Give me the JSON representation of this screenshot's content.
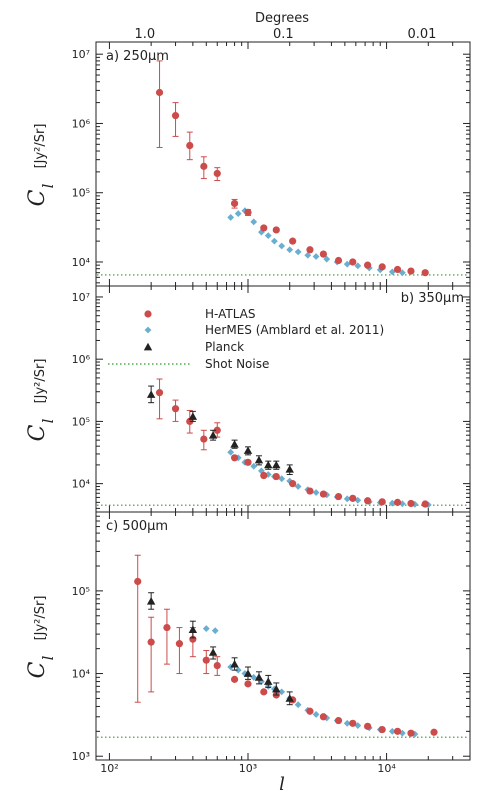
{
  "colors": {
    "hatlas": "#cc4b4b",
    "hermes": "#6aaed0",
    "planck": "#222222",
    "shot_noise": "#2e9a2e"
  },
  "figure": {
    "top_axis_label": "Degrees",
    "top_ticks": [
      {
        "label": "1.0",
        "l": 180
      },
      {
        "label": "0.1",
        "l": 1800
      },
      {
        "label": "0.01",
        "l": 18000
      }
    ],
    "x_label": "l",
    "x_ticks": [
      "10²",
      "10³",
      "10⁴"
    ],
    "y_label_main": "C",
    "y_label_sub": "l",
    "y_unit": "[Jy²/Sr]"
  },
  "legend": {
    "items": [
      {
        "label": "H-ATLAS",
        "marker": "circle"
      },
      {
        "label": "HerMES (Amblard et al. 2011)",
        "marker": "diamond"
      },
      {
        "label": "Planck",
        "marker": "triangle"
      },
      {
        "label": "Shot Noise",
        "marker": "dotted-line"
      }
    ]
  },
  "chart_data": [
    {
      "type": "scatter",
      "title": "a) 250μm",
      "xscale": "log",
      "yscale": "log",
      "xlim": [
        80,
        40000
      ],
      "ylim": [
        4500,
        15000000
      ],
      "y_ticks": [
        "10⁴",
        "10⁵",
        "10⁶",
        "10⁷"
      ],
      "shot_noise": 6500,
      "series": [
        {
          "name": "H-ATLAS",
          "marker": "circle",
          "points": [
            {
              "x": 230,
              "y": 2800000,
              "lo": 450000,
              "hi": 8000000
            },
            {
              "x": 300,
              "y": 1300000,
              "lo": 650000,
              "hi": 2000000
            },
            {
              "x": 380,
              "y": 480000,
              "lo": 300000,
              "hi": 750000
            },
            {
              "x": 480,
              "y": 240000,
              "lo": 160000,
              "hi": 330000
            },
            {
              "x": 600,
              "y": 190000,
              "lo": 150000,
              "hi": 230000
            },
            {
              "x": 800,
              "y": 70000,
              "lo": 60000,
              "hi": 80000
            },
            {
              "x": 1000,
              "y": 52000,
              "lo": 47000,
              "hi": 57000
            },
            {
              "x": 1300,
              "y": 31000
            },
            {
              "x": 1600,
              "y": 29000
            },
            {
              "x": 2100,
              "y": 20000
            },
            {
              "x": 2800,
              "y": 15000
            },
            {
              "x": 3500,
              "y": 13000
            },
            {
              "x": 4500,
              "y": 10500
            },
            {
              "x": 5700,
              "y": 10000
            },
            {
              "x": 7300,
              "y": 9000
            },
            {
              "x": 9300,
              "y": 8500
            },
            {
              "x": 12000,
              "y": 7800
            },
            {
              "x": 15000,
              "y": 7400
            },
            {
              "x": 19000,
              "y": 7000
            }
          ]
        },
        {
          "name": "HerMES (Amblard et al. 2011)",
          "marker": "diamond",
          "points": [
            {
              "x": 750,
              "y": 44000
            },
            {
              "x": 850,
              "y": 50000
            },
            {
              "x": 950,
              "y": 55000
            },
            {
              "x": 1100,
              "y": 38000
            },
            {
              "x": 1250,
              "y": 27000
            },
            {
              "x": 1400,
              "y": 24000
            },
            {
              "x": 1550,
              "y": 20000
            },
            {
              "x": 1750,
              "y": 17000
            },
            {
              "x": 2000,
              "y": 15000
            },
            {
              "x": 2300,
              "y": 14000
            },
            {
              "x": 2700,
              "y": 12500
            },
            {
              "x": 3100,
              "y": 12000
            },
            {
              "x": 3700,
              "y": 11000
            },
            {
              "x": 4400,
              "y": 10000
            },
            {
              "x": 5200,
              "y": 9300
            },
            {
              "x": 6200,
              "y": 8800
            },
            {
              "x": 7500,
              "y": 8200
            },
            {
              "x": 9000,
              "y": 7700
            },
            {
              "x": 11000,
              "y": 7200
            },
            {
              "x": 13000,
              "y": 7000
            }
          ]
        }
      ]
    },
    {
      "type": "scatter",
      "title": "b) 350μm",
      "xscale": "log",
      "yscale": "log",
      "xlim": [
        80,
        40000
      ],
      "ylim": [
        3500,
        15000000
      ],
      "y_ticks": [
        "10⁴",
        "10⁵",
        "10⁶",
        "10⁷"
      ],
      "shot_noise": 4500,
      "series": [
        {
          "name": "H-ATLAS",
          "marker": "circle",
          "points": [
            {
              "x": 230,
              "y": 290000,
              "lo": 110000,
              "hi": 480000
            },
            {
              "x": 300,
              "y": 160000,
              "lo": 100000,
              "hi": 220000
            },
            {
              "x": 380,
              "y": 100000,
              "lo": 65000,
              "hi": 150000
            },
            {
              "x": 480,
              "y": 52000,
              "lo": 35000,
              "hi": 72000
            },
            {
              "x": 600,
              "y": 72000,
              "lo": 56000,
              "hi": 95000
            },
            {
              "x": 800,
              "y": 26000
            },
            {
              "x": 1000,
              "y": 22000
            },
            {
              "x": 1300,
              "y": 13500
            },
            {
              "x": 1600,
              "y": 13000
            },
            {
              "x": 2100,
              "y": 10000
            },
            {
              "x": 2800,
              "y": 7600
            },
            {
              "x": 3500,
              "y": 6800
            },
            {
              "x": 4500,
              "y": 6200
            },
            {
              "x": 5700,
              "y": 5800
            },
            {
              "x": 7300,
              "y": 5300
            },
            {
              "x": 9300,
              "y": 5100
            },
            {
              "x": 12000,
              "y": 5000
            },
            {
              "x": 15000,
              "y": 4800
            },
            {
              "x": 19000,
              "y": 4700
            }
          ]
        },
        {
          "name": "HerMES (Amblard et al. 2011)",
          "marker": "diamond",
          "points": [
            {
              "x": 750,
              "y": 32000
            },
            {
              "x": 850,
              "y": 26000
            },
            {
              "x": 950,
              "y": 22000
            },
            {
              "x": 1100,
              "y": 19000
            },
            {
              "x": 1250,
              "y": 16000
            },
            {
              "x": 1400,
              "y": 14000
            },
            {
              "x": 1550,
              "y": 13000
            },
            {
              "x": 1750,
              "y": 12000
            },
            {
              "x": 2000,
              "y": 11000
            },
            {
              "x": 2300,
              "y": 9000
            },
            {
              "x": 2700,
              "y": 8000
            },
            {
              "x": 3100,
              "y": 7200
            },
            {
              "x": 3700,
              "y": 6600
            },
            {
              "x": 4400,
              "y": 6100
            },
            {
              "x": 5200,
              "y": 5700
            },
            {
              "x": 6200,
              "y": 5400
            },
            {
              "x": 7500,
              "y": 5100
            },
            {
              "x": 9000,
              "y": 4950
            },
            {
              "x": 11000,
              "y": 4850
            },
            {
              "x": 13000,
              "y": 4750
            },
            {
              "x": 16000,
              "y": 4650
            },
            {
              "x": 20000,
              "y": 4550
            }
          ]
        },
        {
          "name": "Planck",
          "marker": "triangle",
          "points": [
            {
              "x": 200,
              "y": 270000,
              "lo": 200000,
              "hi": 370000
            },
            {
              "x": 400,
              "y": 120000,
              "lo": 100000,
              "hi": 145000
            },
            {
              "x": 560,
              "y": 60000,
              "lo": 50000,
              "hi": 72000
            },
            {
              "x": 800,
              "y": 43000,
              "lo": 37000,
              "hi": 50000
            },
            {
              "x": 1000,
              "y": 34000,
              "lo": 29000,
              "hi": 39000
            },
            {
              "x": 1200,
              "y": 24000,
              "lo": 20000,
              "hi": 28000
            },
            {
              "x": 1400,
              "y": 20000,
              "lo": 17000,
              "hi": 23000
            },
            {
              "x": 1600,
              "y": 20000,
              "lo": 17000,
              "hi": 23000
            },
            {
              "x": 2000,
              "y": 17000,
              "lo": 14000,
              "hi": 20000
            }
          ]
        }
      ]
    },
    {
      "type": "scatter",
      "title": "c) 500μm",
      "xscale": "log",
      "yscale": "log",
      "xlim": [
        80,
        40000
      ],
      "ylim": [
        900,
        900000
      ],
      "y_ticks": [
        "10³",
        "10⁴",
        "10⁵"
      ],
      "shot_noise": 1700,
      "series": [
        {
          "name": "H-ATLAS",
          "marker": "circle",
          "points": [
            {
              "x": 160,
              "y": 130000,
              "lo": 4500,
              "hi": 270000
            },
            {
              "x": 200,
              "y": 24000,
              "lo": 6000,
              "hi": 48000
            },
            {
              "x": 260,
              "y": 36000,
              "lo": 13000,
              "hi": 60000
            },
            {
              "x": 320,
              "y": 23000,
              "lo": 10000,
              "hi": 36000
            },
            {
              "x": 400,
              "y": 26000,
              "lo": 16000,
              "hi": 36000
            },
            {
              "x": 500,
              "y": 14500,
              "lo": 10000,
              "hi": 19000
            },
            {
              "x": 600,
              "y": 12500,
              "lo": 9500,
              "hi": 16000
            },
            {
              "x": 800,
              "y": 8500
            },
            {
              "x": 1000,
              "y": 7500
            },
            {
              "x": 1300,
              "y": 6000
            },
            {
              "x": 1600,
              "y": 5500
            },
            {
              "x": 2100,
              "y": 4800
            },
            {
              "x": 2800,
              "y": 3500
            },
            {
              "x": 3500,
              "y": 3000
            },
            {
              "x": 4500,
              "y": 2700
            },
            {
              "x": 5700,
              "y": 2500
            },
            {
              "x": 7300,
              "y": 2300
            },
            {
              "x": 9300,
              "y": 2100
            },
            {
              "x": 12000,
              "y": 2000
            },
            {
              "x": 15000,
              "y": 1900
            },
            {
              "x": 22000,
              "y": 1950
            }
          ]
        },
        {
          "name": "HerMES (Amblard et al. 2011)",
          "marker": "diamond",
          "points": [
            {
              "x": 750,
              "y": 12000
            },
            {
              "x": 850,
              "y": 11000
            },
            {
              "x": 950,
              "y": 10000
            },
            {
              "x": 1100,
              "y": 9000
            },
            {
              "x": 1250,
              "y": 8000
            },
            {
              "x": 1400,
              "y": 7000
            },
            {
              "x": 1550,
              "y": 6500
            },
            {
              "x": 1750,
              "y": 6000
            },
            {
              "x": 2000,
              "y": 5000
            },
            {
              "x": 2300,
              "y": 4200
            },
            {
              "x": 2700,
              "y": 3600
            },
            {
              "x": 3100,
              "y": 3200
            },
            {
              "x": 3700,
              "y": 2900
            },
            {
              "x": 4400,
              "y": 2700
            },
            {
              "x": 5200,
              "y": 2500
            },
            {
              "x": 6200,
              "y": 2350
            },
            {
              "x": 7500,
              "y": 2200
            },
            {
              "x": 9000,
              "y": 2100
            },
            {
              "x": 11000,
              "y": 2000
            },
            {
              "x": 13000,
              "y": 1900
            },
            {
              "x": 16000,
              "y": 1850
            },
            {
              "x": 500,
              "y": 35000
            },
            {
              "x": 580,
              "y": 33000
            }
          ]
        },
        {
          "name": "Planck",
          "marker": "triangle",
          "points": [
            {
              "x": 200,
              "y": 75000,
              "lo": 60000,
              "hi": 95000
            },
            {
              "x": 400,
              "y": 34000,
              "lo": 27000,
              "hi": 43000
            },
            {
              "x": 560,
              "y": 18000,
              "lo": 15000,
              "hi": 21000
            },
            {
              "x": 800,
              "y": 13000,
              "lo": 11000,
              "hi": 15500
            },
            {
              "x": 1000,
              "y": 10000,
              "lo": 8500,
              "hi": 12000
            },
            {
              "x": 1200,
              "y": 9000,
              "lo": 7500,
              "hi": 10500
            },
            {
              "x": 1400,
              "y": 8000,
              "lo": 6800,
              "hi": 9500
            },
            {
              "x": 1600,
              "y": 6500,
              "lo": 5500,
              "hi": 7700
            },
            {
              "x": 2000,
              "y": 5000,
              "lo": 4200,
              "hi": 6000
            }
          ]
        }
      ]
    }
  ]
}
